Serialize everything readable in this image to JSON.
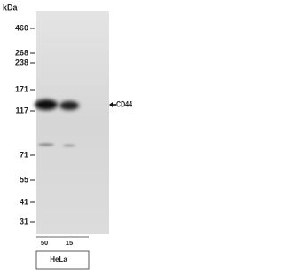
{
  "header": {
    "unit": "kDa"
  },
  "markers": [
    "460",
    "268",
    "238",
    "171",
    "117",
    "71",
    "55",
    "41",
    "31"
  ],
  "target": {
    "label": "CD44"
  },
  "lanes": {
    "amounts": [
      "50",
      "15"
    ],
    "cell_line": "HeLa"
  }
}
